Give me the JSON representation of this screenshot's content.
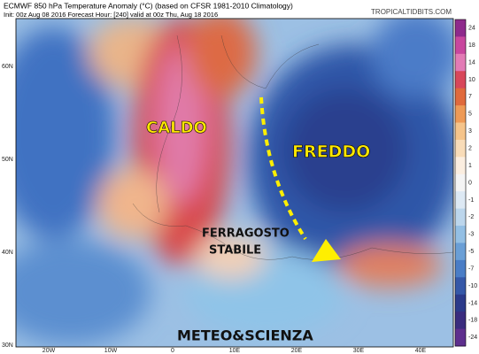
{
  "header": {
    "title": "ECMWF 850 hPa Temperature Anomaly (°C) (based on CFSR 1981-2010 Climatology)",
    "init": "Init: 00z Aug 08 2016   Forecast Hour: [240]   valid at 00z Thu, Aug 18 2016",
    "site": "TROPICALTIDBITS.COM"
  },
  "map": {
    "lat_labels": [
      "60N",
      "50N",
      "40N",
      "30N"
    ],
    "lon_labels": [
      "20W",
      "10W",
      "0",
      "10E",
      "20E",
      "30E",
      "40E"
    ],
    "annotations": {
      "warm": "CALDO",
      "cold": "FREDDO",
      "stable_line1": "FERRAGOSTO",
      "stable_line2": "STABILE",
      "brand": "METEO&SCIENZA"
    }
  },
  "colorbar": {
    "labels": [
      24,
      18,
      14,
      10,
      7,
      5,
      3,
      2,
      1,
      0,
      -1,
      -2,
      -3,
      -5,
      -7,
      -10,
      -14,
      -18,
      -24
    ],
    "colors": [
      "#8e2a8c",
      "#c8479e",
      "#e27bb5",
      "#d8475a",
      "#e06a3c",
      "#ee9a56",
      "#f5c48a",
      "#f8dcb8",
      "#fbeee0",
      "#f4f4f4",
      "#dde9f4",
      "#bcd6ec",
      "#93bfe4",
      "#6a9fd6",
      "#4a7dc6",
      "#3558a8",
      "#2b3a8a",
      "#3a2c7e",
      "#5e2f8e"
    ]
  }
}
